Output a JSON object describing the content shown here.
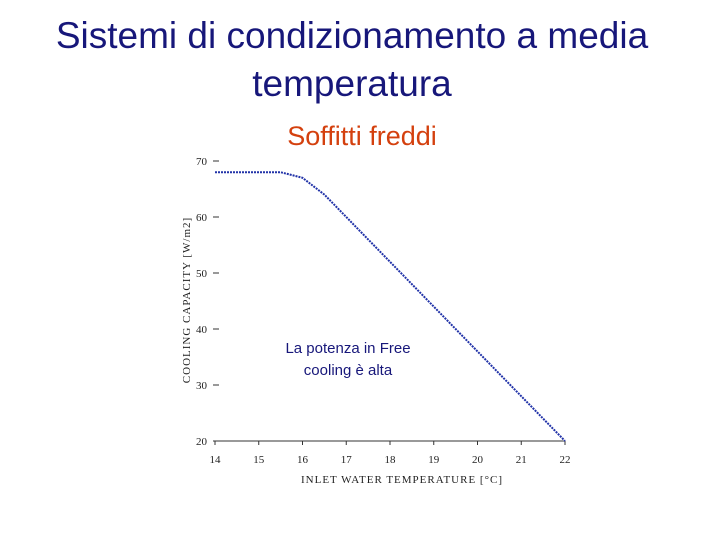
{
  "chart_data": {
    "type": "line",
    "title": [
      "Sistemi di condizionamento a media",
      "temperatura"
    ],
    "subtitle": "Soffitti freddi",
    "x_label": "INLET WATER TEMPERATURE [°C]",
    "y_label": "COOLING CAPACITY [W/m2]",
    "annotation": [
      "La potenza in Free",
      "cooling è alta"
    ],
    "x": [
      14,
      14.5,
      15,
      15.5,
      16,
      16.5,
      17,
      17.5,
      18,
      18.5,
      19,
      19.5,
      20,
      20.5,
      21,
      21.5,
      22
    ],
    "series": [
      {
        "color": "#2233a8",
        "values": [
          68,
          68,
          68,
          68,
          67,
          64,
          60,
          56,
          52,
          48,
          44,
          40,
          36,
          32,
          28,
          24,
          20
        ]
      }
    ],
    "xlim": [
      14,
      22
    ],
    "xticks": [
      14,
      15,
      16,
      17,
      18,
      19,
      20,
      21,
      22
    ],
    "ylim": [
      20,
      70
    ],
    "yticks": [
      20,
      30,
      40,
      50,
      60,
      70
    ]
  }
}
